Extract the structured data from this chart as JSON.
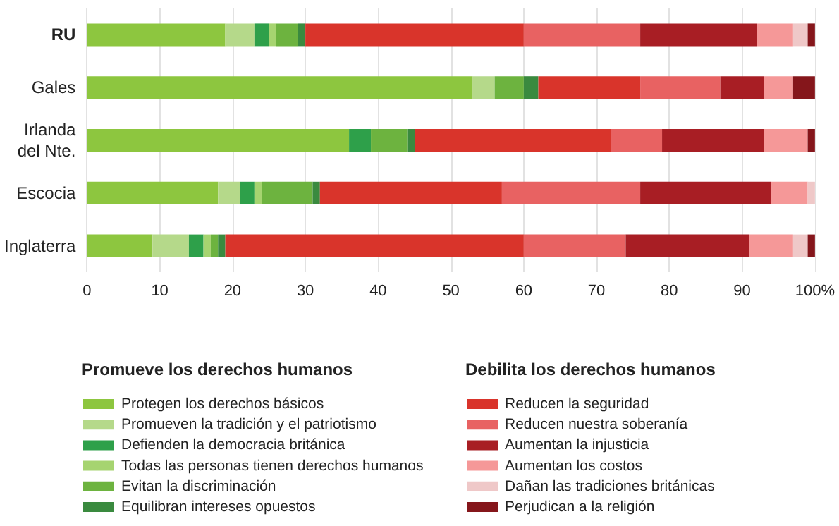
{
  "chart_data": {
    "type": "bar",
    "orientation": "horizontal",
    "stacked": true,
    "categories": [
      "RU",
      "Gales",
      "Irlanda del Nte.",
      "Escocia",
      "Inglaterra"
    ],
    "series": [
      {
        "name": "Protegen los derechos básicos",
        "color": "#8dc63f",
        "values": [
          19,
          53,
          36,
          18,
          9
        ]
      },
      {
        "name": "Promueven la tradición y el patriotismo",
        "color": "#b5d98a",
        "values": [
          4,
          3,
          0,
          3,
          5
        ]
      },
      {
        "name": "Defienden la democracia británica",
        "color": "#2ea04a",
        "values": [
          2,
          0,
          3,
          2,
          2
        ]
      },
      {
        "name": "Todas las personas tienen derechos humanos",
        "color": "#a6d470",
        "values": [
          1,
          0,
          0,
          1,
          1
        ]
      },
      {
        "name": "Evitan la discriminación",
        "color": "#6db33f",
        "values": [
          3,
          4,
          5,
          7,
          1
        ]
      },
      {
        "name": "Equilibran intereses opuestos",
        "color": "#3a8a3f",
        "values": [
          1,
          2,
          1,
          1,
          1
        ]
      },
      {
        "name": "Reducen la seguridad",
        "color": "#d9342b",
        "values": [
          30,
          14,
          27,
          25,
          41
        ]
      },
      {
        "name": "Reducen nuestra soberanía",
        "color": "#e86262",
        "values": [
          16,
          11,
          7,
          19,
          14
        ]
      },
      {
        "name": "Aumentan la injusticia",
        "color": "#a81e24",
        "values": [
          16,
          6,
          14,
          18,
          17
        ]
      },
      {
        "name": "Aumentan los costos",
        "color": "#f59898",
        "values": [
          5,
          4,
          6,
          5,
          6
        ]
      },
      {
        "name": "Dañan las tradiciones británicas",
        "color": "#efc8c8",
        "values": [
          2,
          0,
          0,
          1,
          2
        ]
      },
      {
        "name": "Perjudican a la religión",
        "color": "#85161b",
        "values": [
          1,
          3,
          1,
          0,
          1
        ]
      }
    ],
    "xlim": [
      0,
      100
    ],
    "xticks": [
      0,
      10,
      20,
      30,
      40,
      50,
      60,
      70,
      80,
      90,
      {
        "value": 100,
        "label": "100%"
      }
    ],
    "grid": "x",
    "legend": "bottom",
    "annotations": [
      "Promueve los derechos humanos",
      "Debilita los derechos humanos"
    ]
  }
}
